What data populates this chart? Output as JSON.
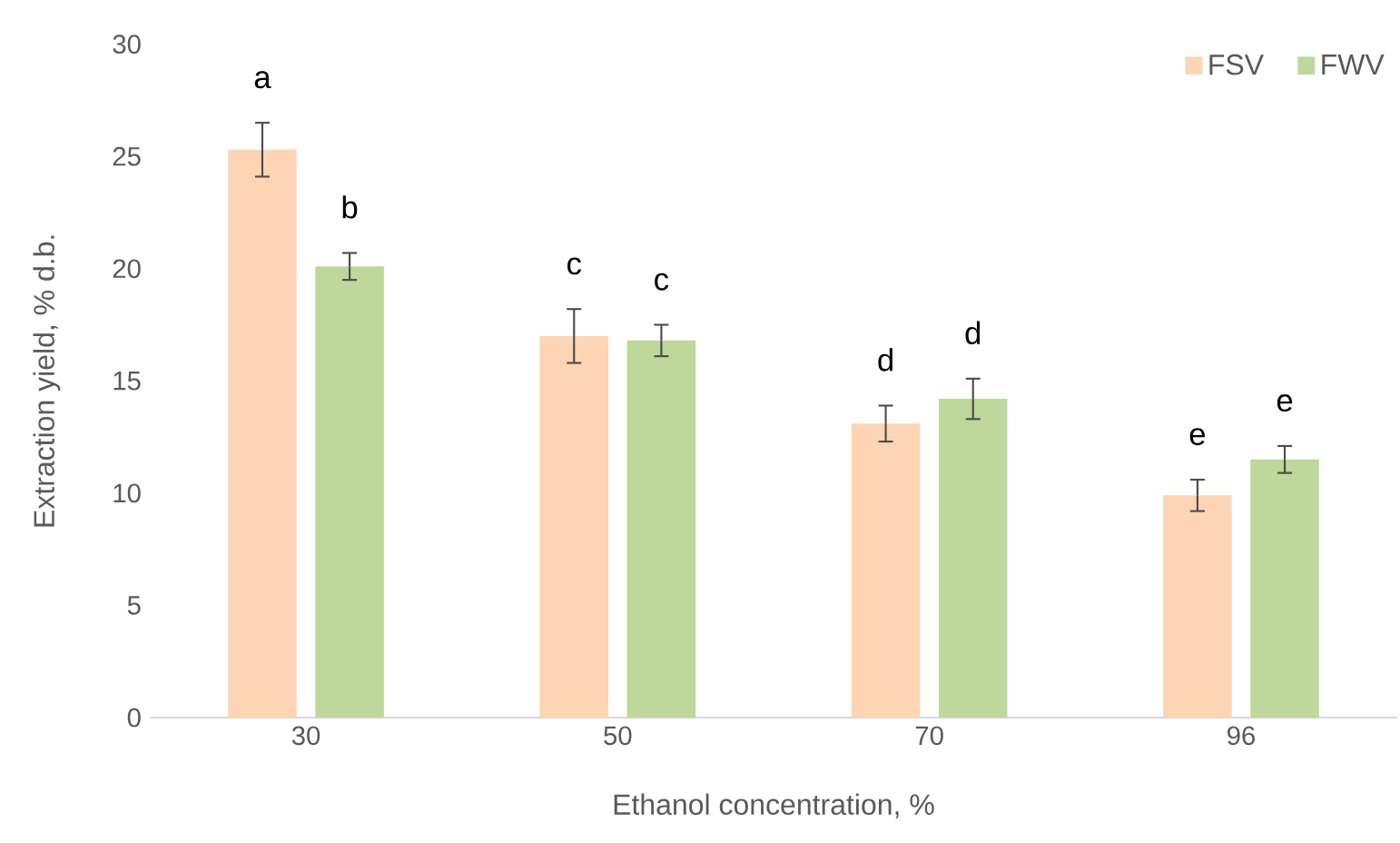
{
  "chart_data": {
    "type": "bar",
    "xlabel": "Ethanol concentration, %",
    "ylabel": "Extraction yield, % d.b.",
    "categories": [
      "30",
      "50",
      "70",
      "96"
    ],
    "series": [
      {
        "name": "FSV",
        "color": "#fdd5b4",
        "values": [
          25.3,
          17.0,
          13.1,
          9.9
        ],
        "errors": [
          1.2,
          1.2,
          0.8,
          0.7
        ]
      },
      {
        "name": "FWV",
        "color": "#bdd89a",
        "values": [
          20.1,
          16.8,
          14.2,
          11.5
        ],
        "errors": [
          0.6,
          0.7,
          0.9,
          0.6
        ]
      }
    ],
    "ylim": [
      0,
      30
    ],
    "yticks": [
      0,
      5,
      10,
      15,
      20,
      25,
      30
    ],
    "grid": false,
    "legend": "top right",
    "annotations": [
      "a",
      "b",
      "c",
      "c",
      "d",
      "d",
      "e",
      "e"
    ]
  }
}
